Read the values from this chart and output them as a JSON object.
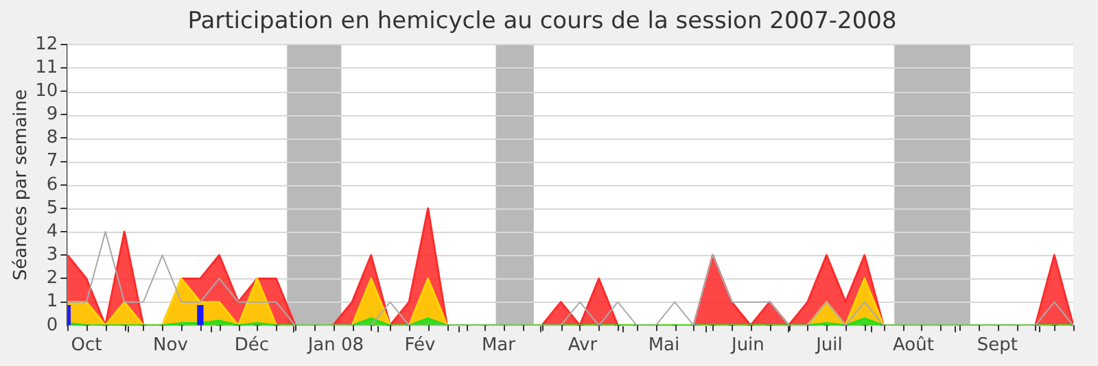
{
  "chart_data": {
    "type": "area",
    "title": "Participation en hemicycle au cours de la session 2007-2008",
    "ylabel": "Séances par semaine",
    "x": [
      "2007-09-24",
      "2007-10-01",
      "2007-10-08",
      "2007-10-15",
      "2007-10-22",
      "2007-10-29",
      "2007-11-05",
      "2007-11-12",
      "2007-11-19",
      "2007-11-26",
      "2007-12-03",
      "2007-12-10",
      "2007-12-17",
      "2007-12-24",
      "2007-12-31",
      "2008-01-07",
      "2008-01-14",
      "2008-01-21",
      "2008-01-28",
      "2008-02-04",
      "2008-02-11",
      "2008-02-18",
      "2008-02-25",
      "2008-03-03",
      "2008-03-10",
      "2008-03-17",
      "2008-03-24",
      "2008-03-31",
      "2008-04-07",
      "2008-04-14",
      "2008-04-21",
      "2008-04-28",
      "2008-05-05",
      "2008-05-12",
      "2008-05-19",
      "2008-05-26",
      "2008-06-02",
      "2008-06-09",
      "2008-06-16",
      "2008-06-23",
      "2008-06-30",
      "2008-07-07",
      "2008-07-14",
      "2008-07-21",
      "2008-07-28",
      "2008-08-04",
      "2008-08-11",
      "2008-08-18",
      "2008-08-25",
      "2008-09-01",
      "2008-09-08",
      "2008-09-15",
      "2008-09-22",
      "2008-09-29"
    ],
    "xlim": [
      "2007-09-24",
      "2008-09-29"
    ],
    "xticks": [
      {
        "value": "2007-10-01",
        "label": "Oct"
      },
      {
        "value": "2007-11-01",
        "label": "Nov"
      },
      {
        "value": "2007-12-01",
        "label": "Déc"
      },
      {
        "value": "2008-01-01",
        "label": "Jan 08"
      },
      {
        "value": "2008-02-01",
        "label": "Fév"
      },
      {
        "value": "2008-03-01",
        "label": "Mar"
      },
      {
        "value": "2008-04-01",
        "label": "Avr"
      },
      {
        "value": "2008-05-01",
        "label": "Mai"
      },
      {
        "value": "2008-06-01",
        "label": "Juin"
      },
      {
        "value": "2008-07-01",
        "label": "Juil"
      },
      {
        "value": "2008-08-01",
        "label": "Août"
      },
      {
        "value": "2008-09-01",
        "label": "Sept"
      }
    ],
    "ylim": [
      0,
      12
    ],
    "yticks": [
      0,
      1,
      2,
      3,
      4,
      5,
      6,
      7,
      8,
      9,
      10,
      11,
      12
    ],
    "grid": "y",
    "legend": false,
    "marker": "none",
    "bands": [
      {
        "axis": "x",
        "from": "2007-12-14",
        "to": "2008-01-03",
        "color": "#808080"
      },
      {
        "axis": "x",
        "from": "2008-02-29",
        "to": "2008-03-14",
        "color": "#808080"
      },
      {
        "axis": "x",
        "from": "2008-07-25",
        "to": "2008-08-22",
        "color": "#808080"
      }
    ],
    "series": [
      {
        "color": "#ff2a2a",
        "values": [
          3,
          2,
          0,
          4,
          0,
          0,
          2,
          2,
          3,
          1,
          2,
          2,
          0,
          0,
          0,
          1,
          3,
          0,
          1,
          5,
          0,
          0,
          0,
          0,
          0,
          0,
          1,
          0,
          2,
          0,
          0,
          0,
          0,
          0,
          3,
          1,
          0,
          1,
          0,
          1,
          3,
          1,
          3,
          0,
          0,
          0,
          0,
          0,
          0,
          0,
          0,
          0,
          3,
          0
        ]
      },
      {
        "color": "#ffd700",
        "values": [
          1,
          1,
          0,
          1,
          0,
          0,
          2,
          1,
          1,
          0,
          2,
          0,
          0,
          0,
          0,
          0,
          2,
          0,
          0,
          2,
          0,
          0,
          0,
          0,
          0,
          0,
          0,
          0,
          0,
          0,
          0,
          0,
          0,
          0,
          0,
          0,
          0,
          0,
          0,
          0,
          1,
          0,
          2,
          0,
          0,
          0,
          0,
          0,
          0,
          0,
          0,
          0,
          0,
          0
        ]
      },
      {
        "color": "#22dd22",
        "values": [
          0.1,
          0,
          0,
          0,
          0,
          0,
          0.1,
          0.1,
          0.2,
          0,
          0.1,
          0,
          0,
          0,
          0,
          0,
          0.3,
          0,
          0,
          0.3,
          0,
          0,
          0,
          0,
          0,
          0,
          0,
          0,
          0,
          0,
          0,
          0,
          0,
          0,
          0,
          0,
          0,
          0,
          0,
          0,
          0.1,
          0,
          0.3,
          0,
          0,
          0,
          0,
          0,
          0,
          0,
          0,
          0,
          0,
          0
        ]
      },
      {
        "type": "bar",
        "color": "#1a1aff",
        "values": [
          0.85,
          0,
          0,
          0,
          0,
          0,
          0,
          0.85,
          0,
          0,
          0,
          0,
          0,
          0,
          0,
          0,
          0,
          0,
          0,
          0,
          0,
          0,
          0,
          0,
          0,
          0,
          0,
          0,
          0,
          0,
          0,
          0,
          0,
          0,
          0,
          0,
          0,
          0,
          0,
          0,
          0,
          0,
          0,
          0,
          0,
          0,
          0,
          0,
          0,
          0,
          0,
          0,
          0,
          0
        ]
      },
      {
        "type": "line",
        "color": "#aaaaaa",
        "values": [
          1,
          1,
          4,
          1,
          1,
          3,
          1,
          1,
          2,
          1,
          1,
          1,
          0,
          0,
          0,
          0,
          0,
          1,
          0,
          0,
          0,
          0,
          0,
          0,
          0,
          0,
          0,
          1,
          0,
          1,
          0,
          0,
          1,
          0,
          3,
          1,
          1,
          1,
          0,
          0,
          1,
          0,
          1,
          0,
          0,
          0,
          0,
          0,
          0,
          0,
          0,
          0,
          1,
          0
        ]
      }
    ]
  }
}
